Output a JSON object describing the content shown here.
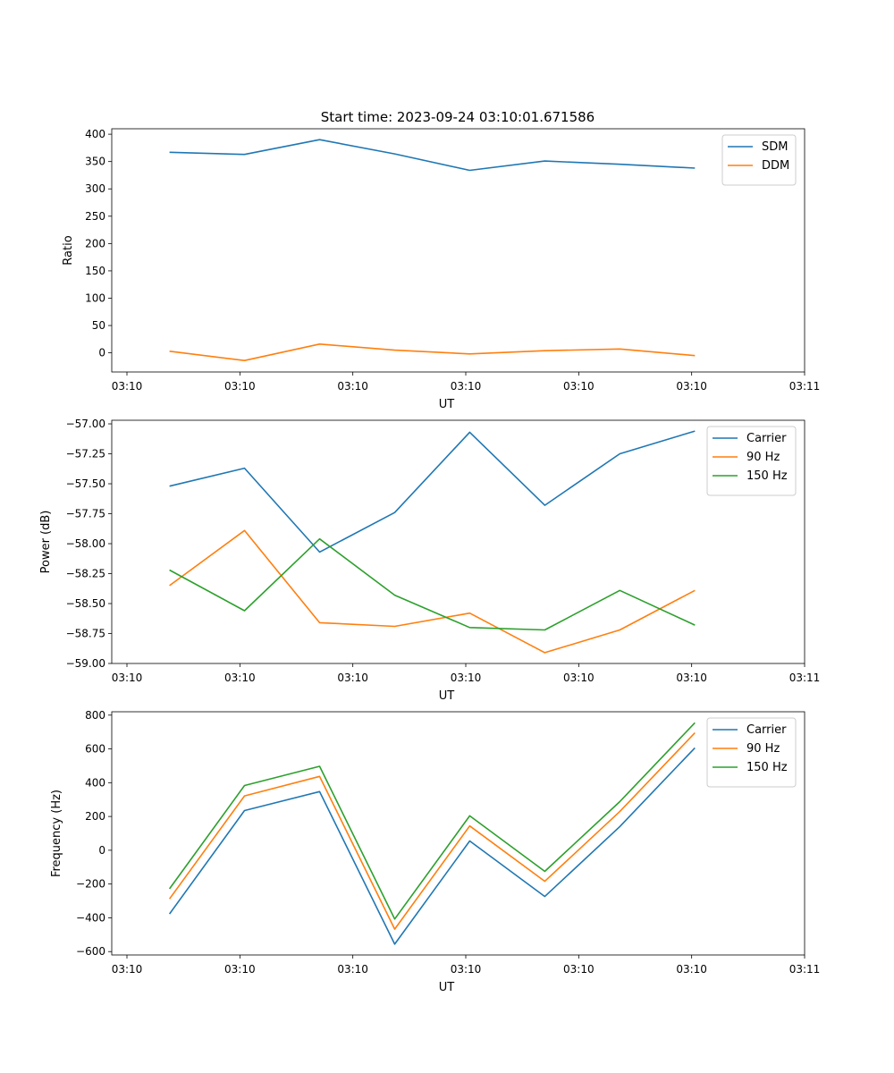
{
  "figure_title": "Start time: 2023-09-24 03:10:01.671586",
  "chart_data": [
    {
      "type": "line",
      "title": "Start time: 2023-09-24 03:10:01.671586",
      "xlabel": "UT",
      "ylabel": "Ratio",
      "x_tick_labels": [
        "03:10",
        "03:10",
        "03:10",
        "03:10",
        "03:10",
        "03:10",
        "03:11"
      ],
      "x": [
        0.5,
        1.15,
        1.8,
        2.45,
        3.1,
        3.75,
        4.4,
        5.05
      ],
      "xlim": [
        0,
        6
      ],
      "ylim": [
        -35,
        410
      ],
      "yticks": [
        0,
        50,
        100,
        150,
        200,
        250,
        300,
        350,
        400
      ],
      "ytick_labels": [
        "0",
        "50",
        "100",
        "150",
        "200",
        "250",
        "300",
        "350",
        "400"
      ],
      "legend_position": "upper right",
      "series": [
        {
          "name": "SDM",
          "color": "#1f77b4",
          "values": [
            367,
            363,
            390,
            364,
            334,
            351,
            345,
            338
          ]
        },
        {
          "name": "DDM",
          "color": "#ff7f0e",
          "values": [
            3,
            -14,
            16,
            5,
            -2,
            4,
            7,
            -5
          ]
        }
      ]
    },
    {
      "type": "line",
      "title": "",
      "xlabel": "UT",
      "ylabel": "Power (dB)",
      "x_tick_labels": [
        "03:10",
        "03:10",
        "03:10",
        "03:10",
        "03:10",
        "03:10",
        "03:11"
      ],
      "x": [
        0.5,
        1.15,
        1.8,
        2.45,
        3.1,
        3.75,
        4.4,
        5.05
      ],
      "xlim": [
        0,
        6
      ],
      "ylim": [
        -59.0,
        -56.97
      ],
      "yticks": [
        -59.0,
        -58.75,
        -58.5,
        -58.25,
        -58.0,
        -57.75,
        -57.5,
        -57.25,
        -57.0
      ],
      "ytick_labels": [
        "−59.00",
        "−58.75",
        "−58.50",
        "−58.25",
        "−58.00",
        "−57.75",
        "−57.50",
        "−57.25",
        "−57.00"
      ],
      "legend_position": "upper right",
      "series": [
        {
          "name": "Carrier",
          "color": "#1f77b4",
          "values": [
            -57.52,
            -57.37,
            -58.07,
            -57.74,
            -57.07,
            -57.68,
            -57.25,
            -57.06
          ]
        },
        {
          "name": "90 Hz",
          "color": "#ff7f0e",
          "values": [
            -58.35,
            -57.89,
            -58.66,
            -58.69,
            -58.58,
            -58.91,
            -58.72,
            -58.39
          ]
        },
        {
          "name": "150 Hz",
          "color": "#2ca02c",
          "values": [
            -58.22,
            -58.56,
            -57.96,
            -58.43,
            -58.7,
            -58.72,
            -58.39,
            -58.68
          ]
        }
      ]
    },
    {
      "type": "line",
      "title": "",
      "xlabel": "UT",
      "ylabel": "Frequency (Hz)",
      "x_tick_labels": [
        "03:10",
        "03:10",
        "03:10",
        "03:10",
        "03:10",
        "03:10",
        "03:11"
      ],
      "x": [
        0.5,
        1.15,
        1.8,
        2.45,
        3.1,
        3.75,
        4.4,
        5.05
      ],
      "xlim": [
        0,
        6
      ],
      "ylim": [
        -620,
        820
      ],
      "yticks": [
        -600,
        -400,
        -200,
        0,
        200,
        400,
        600,
        800
      ],
      "ytick_labels": [
        "−600",
        "−400",
        "−200",
        "0",
        "200",
        "400",
        "600",
        "800"
      ],
      "legend_position": "upper right",
      "series": [
        {
          "name": "Carrier",
          "color": "#1f77b4",
          "values": [
            -377,
            235,
            347,
            -556,
            55,
            -274,
            140,
            606
          ]
        },
        {
          "name": "90 Hz",
          "color": "#ff7f0e",
          "values": [
            -288,
            322,
            437,
            -467,
            144,
            -184,
            229,
            695
          ]
        },
        {
          "name": "150 Hz",
          "color": "#2ca02c",
          "values": [
            -228,
            383,
            497,
            -407,
            204,
            -125,
            288,
            755
          ]
        }
      ]
    }
  ]
}
